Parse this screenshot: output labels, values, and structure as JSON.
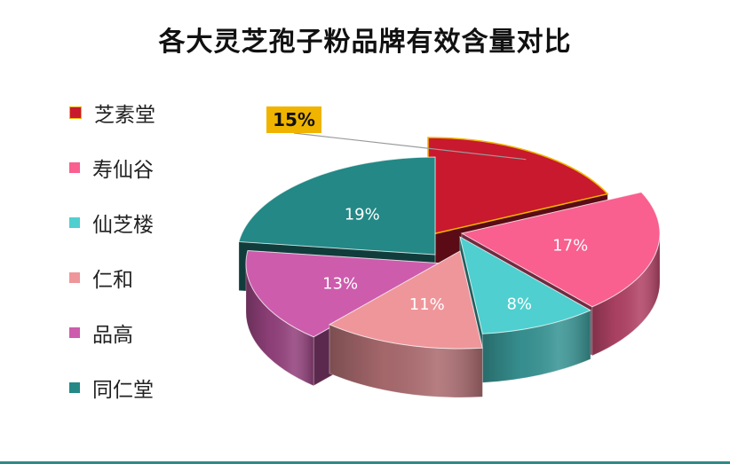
{
  "chart_data": {
    "type": "pie",
    "title": "各大灵芝孢子粉品牌有效含量对比",
    "slices": [
      {
        "label": "芝素堂",
        "value": 15,
        "text": "15%",
        "color": "#c8192e"
      },
      {
        "label": "寿仙谷",
        "value": 17,
        "text": "17%",
        "color": "#f95f8f"
      },
      {
        "label": "仙芝楼",
        "value": 8,
        "text": "8%",
        "color": "#4fcfcf"
      },
      {
        "label": "仁和",
        "value": 11,
        "text": "11%",
        "color": "#ef969b"
      },
      {
        "label": "品高",
        "value": 13,
        "text": "13%",
        "color": "#cd5cad"
      },
      {
        "label": "同仁堂",
        "value": 19,
        "text": "19%",
        "color": "#238886"
      }
    ],
    "legend_position": "left",
    "highlight_label_color": "#f0b400"
  }
}
